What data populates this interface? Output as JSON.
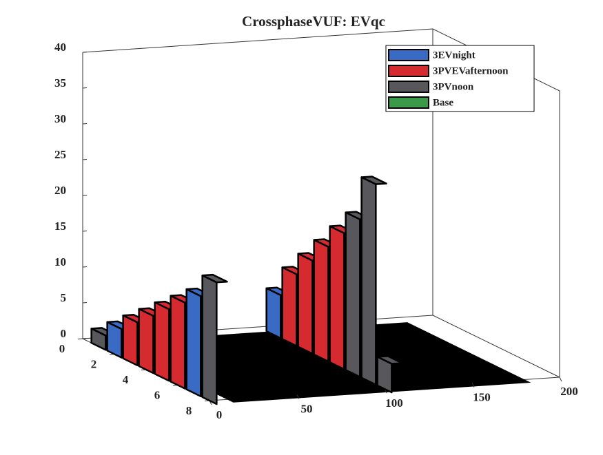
{
  "chart_data": {
    "type": "ribbon3d",
    "title": "CrossphaseVUF: EVqc",
    "x": [
      1,
      2,
      3,
      4,
      5,
      6,
      7,
      8
    ],
    "ribbon_y": [
      0,
      100
    ],
    "series": [
      {
        "name": "3EVnight",
        "color": "#3a6bc4",
        "values": [
          [
            null,
            4,
            null,
            null,
            null,
            null,
            14,
            null
          ],
          [
            6,
            null,
            null,
            null,
            null,
            null,
            null,
            null
          ]
        ]
      },
      {
        "name": "3PVEVafternoon",
        "color": "#d42a30",
        "values": [
          [
            null,
            null,
            6,
            8,
            10,
            12,
            null,
            null
          ],
          [
            null,
            10,
            13,
            16,
            19,
            null,
            null,
            null
          ]
        ]
      },
      {
        "name": "3PVnoon",
        "color": "#58585c",
        "values": [
          [
            2,
            null,
            null,
            null,
            null,
            null,
            null,
            17
          ],
          [
            null,
            null,
            null,
            null,
            null,
            22,
            28,
            4
          ]
        ]
      },
      {
        "name": "Base",
        "color": "#3a9a4a",
        "values": [
          [
            null,
            null,
            null,
            null,
            null,
            null,
            null,
            null
          ],
          [
            null,
            null,
            null,
            null,
            null,
            null,
            null,
            null
          ]
        ]
      }
    ],
    "xlim": [
      0,
      8
    ],
    "xticks": [
      0,
      2,
      4,
      6,
      8
    ],
    "ylim": [
      0,
      200
    ],
    "yticks": [
      0,
      50,
      100,
      150,
      200
    ],
    "zlim": [
      0,
      40
    ],
    "zticks": [
      0,
      5,
      10,
      15,
      20,
      25,
      30,
      35,
      40
    ]
  }
}
